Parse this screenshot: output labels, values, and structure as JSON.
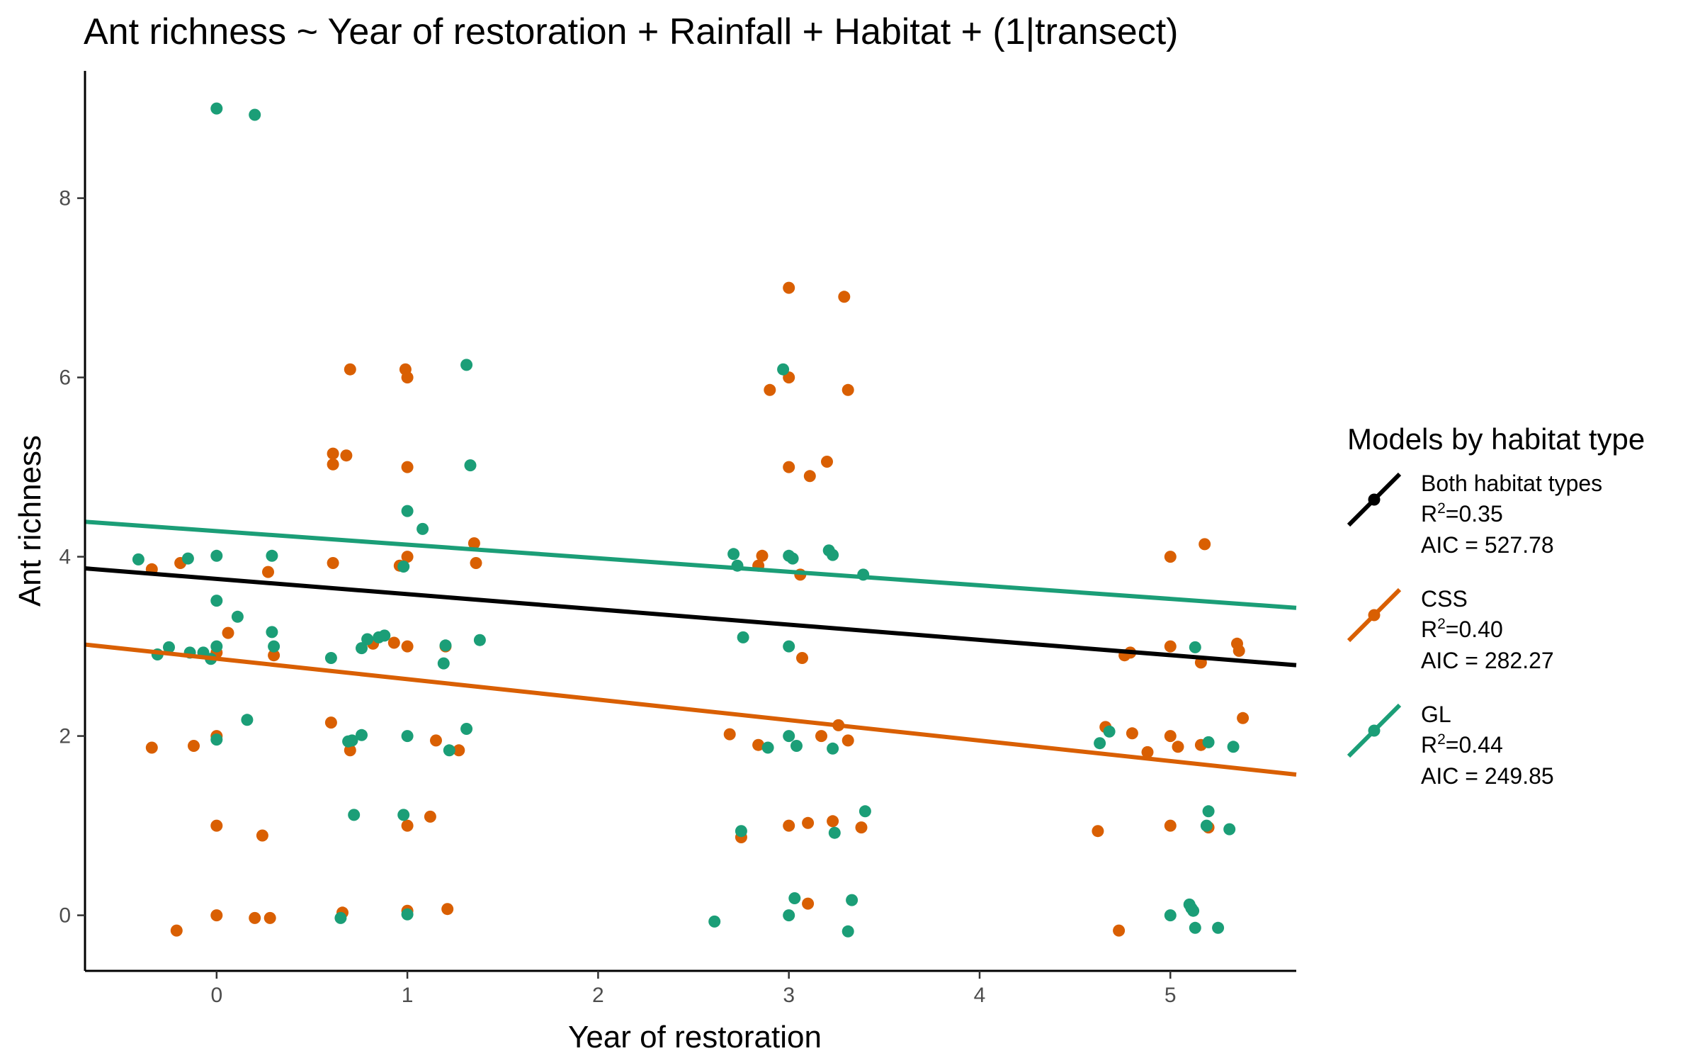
{
  "chart_data": {
    "type": "scatter",
    "title": "Ant richness ~ Year of restoration + Rainfall + Habitat + (1|transect)",
    "xlabel": "Year of restoration",
    "ylabel": "Ant richness",
    "xlim": [
      -0.69,
      5.66
    ],
    "ylim": [
      -0.62,
      9.42
    ],
    "x_ticks": [
      0,
      1,
      2,
      3,
      4,
      5
    ],
    "y_ticks": [
      0,
      2,
      4,
      6,
      8
    ],
    "grid": false,
    "legend": {
      "title": "Models by habitat type",
      "position": "right",
      "entries": [
        {
          "series": "Both habitat types",
          "label": "Both habitat types",
          "r2_prefix": "R",
          "r2_sup": "2",
          "r2_value": "=0.35",
          "aic": "AIC = 527.78",
          "color": "#000000"
        },
        {
          "series": "CSS",
          "label": "CSS",
          "r2_prefix": "R",
          "r2_sup": "2",
          "r2_value": "=0.40",
          "aic": "AIC = 282.27",
          "color": "#d95f02"
        },
        {
          "series": "GL",
          "label": "GL",
          "r2_prefix": "R",
          "r2_sup": "2",
          "r2_value": "=0.44",
          "aic": "AIC = 249.85",
          "color": "#1b9e77"
        }
      ]
    },
    "lines": [
      {
        "name": "Both habitat types",
        "color": "#000000",
        "x": [
          -0.69,
          5.66
        ],
        "y": [
          3.87,
          2.79
        ]
      },
      {
        "name": "CSS",
        "color": "#d95f02",
        "x": [
          -0.69,
          5.66
        ],
        "y": [
          3.02,
          1.57
        ]
      },
      {
        "name": "GL",
        "color": "#1b9e77",
        "x": [
          -0.69,
          5.66
        ],
        "y": [
          4.39,
          3.43
        ]
      }
    ],
    "series": [
      {
        "name": "CSS",
        "color": "#d95f02",
        "points": [
          [
            -0.34,
            3.86
          ],
          [
            -0.19,
            3.93
          ],
          [
            0.0,
            2.93
          ],
          [
            0.06,
            3.15
          ],
          [
            0.27,
            3.83
          ],
          [
            0.3,
            2.9
          ],
          [
            -0.34,
            1.87
          ],
          [
            -0.12,
            1.89
          ],
          [
            0.0,
            2.0
          ],
          [
            0.0,
            1.0
          ],
          [
            0.24,
            0.89
          ],
          [
            -0.21,
            -0.17
          ],
          [
            0.0,
            0.0
          ],
          [
            0.2,
            -0.03
          ],
          [
            0.28,
            -0.03
          ],
          [
            0.61,
            5.15
          ],
          [
            0.68,
            5.13
          ],
          [
            0.61,
            5.03
          ],
          [
            0.61,
            3.93
          ],
          [
            0.7,
            6.09
          ],
          [
            0.99,
            6.09
          ],
          [
            1.0,
            6.0
          ],
          [
            1.0,
            5.0
          ],
          [
            0.96,
            3.9
          ],
          [
            1.0,
            4.0
          ],
          [
            1.35,
            4.15
          ],
          [
            1.36,
            3.93
          ],
          [
            0.82,
            3.03
          ],
          [
            0.93,
            3.04
          ],
          [
            1.0,
            3.0
          ],
          [
            1.2,
            3.0
          ],
          [
            0.6,
            2.15
          ],
          [
            0.7,
            1.84
          ],
          [
            1.15,
            1.95
          ],
          [
            1.27,
            1.84
          ],
          [
            1.0,
            1.0
          ],
          [
            1.12,
            1.1
          ],
          [
            0.66,
            0.03
          ],
          [
            1.0,
            0.05
          ],
          [
            1.21,
            0.07
          ],
          [
            3.0,
            7.0
          ],
          [
            3.29,
            6.9
          ],
          [
            2.9,
            5.86
          ],
          [
            3.0,
            6.0
          ],
          [
            3.31,
            5.86
          ],
          [
            3.0,
            5.0
          ],
          [
            3.11,
            4.9
          ],
          [
            3.2,
            5.06
          ],
          [
            2.84,
            3.9
          ],
          [
            2.86,
            4.01
          ],
          [
            3.06,
            3.8
          ],
          [
            3.07,
            2.87
          ],
          [
            2.69,
            2.02
          ],
          [
            2.84,
            1.9
          ],
          [
            3.17,
            2.0
          ],
          [
            3.26,
            2.12
          ],
          [
            3.31,
            1.95
          ],
          [
            2.75,
            0.87
          ],
          [
            3.0,
            1.0
          ],
          [
            3.1,
            1.03
          ],
          [
            3.23,
            1.05
          ],
          [
            3.38,
            0.98
          ],
          [
            3.1,
            0.13
          ],
          [
            5.0,
            4.0
          ],
          [
            5.18,
            4.14
          ],
          [
            4.76,
            2.9
          ],
          [
            4.79,
            2.93
          ],
          [
            5.0,
            3.0
          ],
          [
            5.16,
            2.82
          ],
          [
            5.35,
            3.03
          ],
          [
            5.36,
            2.95
          ],
          [
            4.66,
            2.1
          ],
          [
            4.8,
            2.03
          ],
          [
            4.88,
            1.82
          ],
          [
            5.0,
            2.0
          ],
          [
            5.04,
            1.88
          ],
          [
            5.16,
            1.9
          ],
          [
            5.38,
            2.2
          ],
          [
            4.62,
            0.94
          ],
          [
            5.0,
            1.0
          ],
          [
            5.2,
            0.98
          ],
          [
            4.73,
            -0.17
          ]
        ]
      },
      {
        "name": "GL",
        "color": "#1b9e77",
        "points": [
          [
            0.0,
            9.0
          ],
          [
            0.2,
            8.93
          ],
          [
            -0.41,
            3.97
          ],
          [
            -0.15,
            3.98
          ],
          [
            0.0,
            4.01
          ],
          [
            0.29,
            4.01
          ],
          [
            0.0,
            3.51
          ],
          [
            0.11,
            3.33
          ],
          [
            -0.25,
            2.99
          ],
          [
            -0.31,
            2.91
          ],
          [
            -0.14,
            2.93
          ],
          [
            -0.07,
            2.93
          ],
          [
            -0.03,
            2.86
          ],
          [
            0.0,
            3.0
          ],
          [
            0.29,
            3.16
          ],
          [
            0.3,
            3.0
          ],
          [
            0.16,
            2.18
          ],
          [
            0.0,
            1.96
          ],
          [
            1.31,
            6.14
          ],
          [
            1.0,
            4.51
          ],
          [
            1.08,
            4.31
          ],
          [
            1.33,
            5.02
          ],
          [
            0.98,
            3.89
          ],
          [
            0.6,
            2.87
          ],
          [
            0.76,
            2.98
          ],
          [
            0.79,
            3.08
          ],
          [
            0.85,
            3.1
          ],
          [
            0.88,
            3.12
          ],
          [
            1.19,
            2.81
          ],
          [
            1.2,
            3.01
          ],
          [
            1.38,
            3.07
          ],
          [
            0.69,
            1.94
          ],
          [
            0.71,
            1.95
          ],
          [
            0.76,
            2.01
          ],
          [
            1.0,
            2.0
          ],
          [
            1.31,
            2.08
          ],
          [
            1.22,
            1.84
          ],
          [
            0.72,
            1.12
          ],
          [
            0.98,
            1.12
          ],
          [
            0.65,
            -0.03
          ],
          [
            1.0,
            0.01
          ],
          [
            2.97,
            6.09
          ],
          [
            2.71,
            4.03
          ],
          [
            2.73,
            3.9
          ],
          [
            3.0,
            4.01
          ],
          [
            3.02,
            3.98
          ],
          [
            3.21,
            4.07
          ],
          [
            3.23,
            4.02
          ],
          [
            3.39,
            3.8
          ],
          [
            2.76,
            3.1
          ],
          [
            3.0,
            3.0
          ],
          [
            2.89,
            1.87
          ],
          [
            3.0,
            2.0
          ],
          [
            3.04,
            1.89
          ],
          [
            3.23,
            1.86
          ],
          [
            2.75,
            0.94
          ],
          [
            3.24,
            0.92
          ],
          [
            3.4,
            1.16
          ],
          [
            2.61,
            -0.07
          ],
          [
            3.0,
            0.0
          ],
          [
            3.03,
            0.19
          ],
          [
            3.31,
            -0.18
          ],
          [
            3.33,
            0.17
          ],
          [
            5.13,
            2.99
          ],
          [
            4.63,
            1.92
          ],
          [
            4.68,
            2.05
          ],
          [
            5.2,
            1.93
          ],
          [
            5.33,
            1.88
          ],
          [
            5.2,
            1.16
          ],
          [
            5.19,
            1.0
          ],
          [
            5.31,
            0.96
          ],
          [
            5.0,
            0.0
          ],
          [
            5.1,
            0.12
          ],
          [
            5.11,
            0.08
          ],
          [
            5.12,
            0.05
          ],
          [
            5.13,
            -0.14
          ],
          [
            5.25,
            -0.14
          ]
        ]
      }
    ]
  }
}
